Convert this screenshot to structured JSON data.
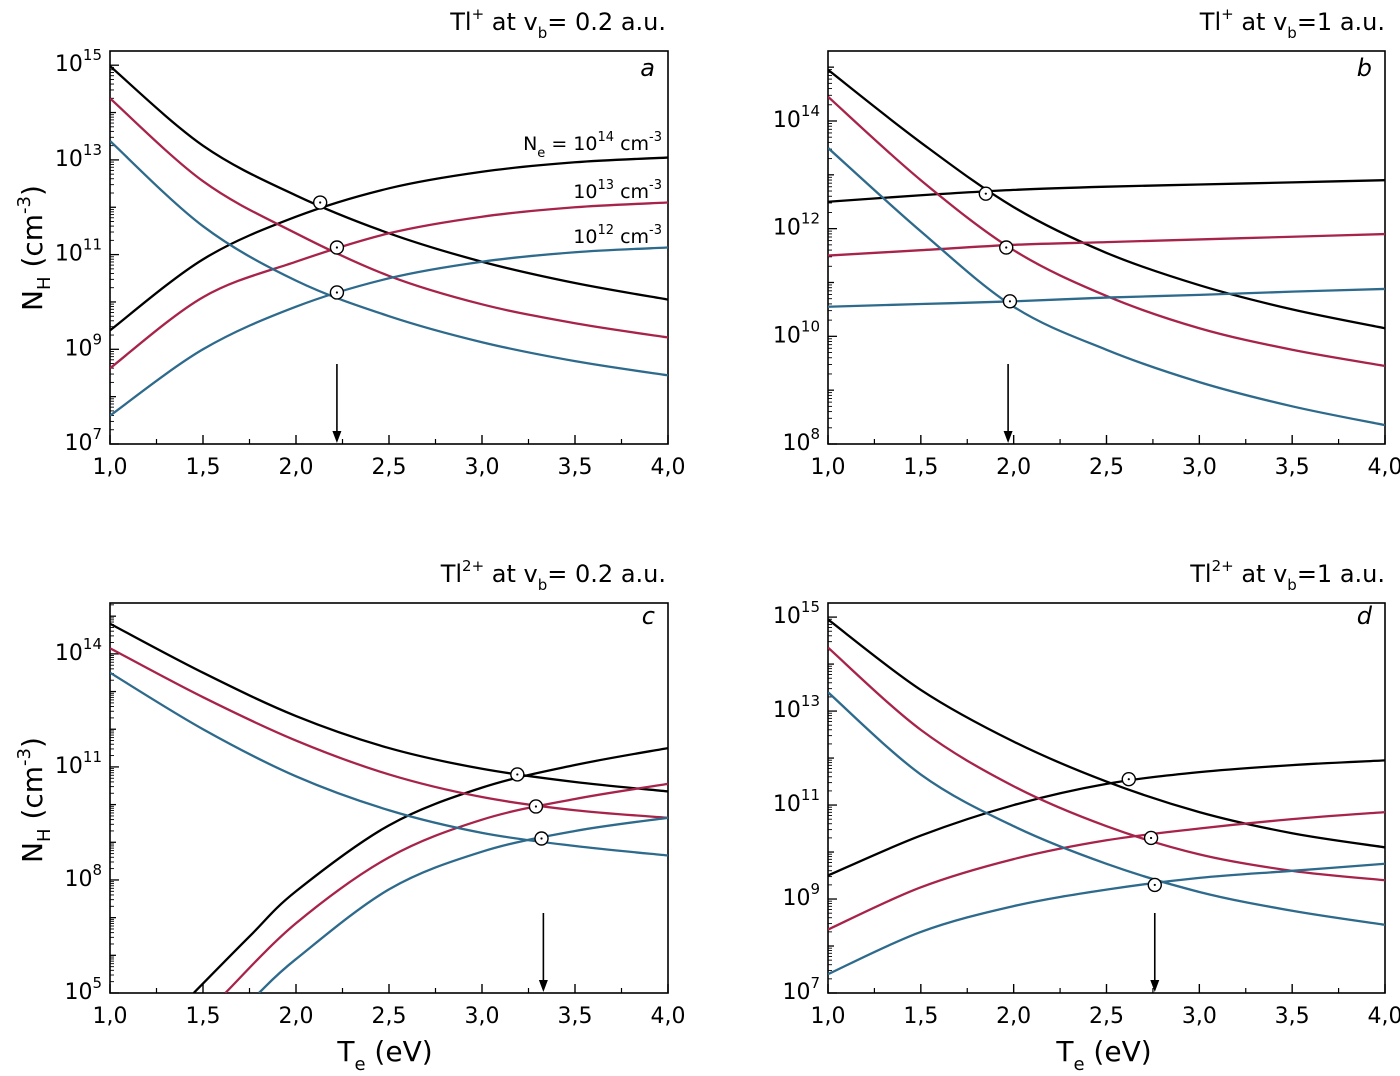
{
  "figure": {
    "colors": {
      "black": "#000000",
      "red": "#a8234a",
      "blue": "#2d6a8c"
    },
    "y_label": {
      "main": "N",
      "sub": "H",
      "rest": " (cm",
      "sup": "-3",
      "close": ")"
    },
    "x_label": {
      "main": "T",
      "sub": "e",
      "rest": " (eV)"
    }
  },
  "chart_data": [
    {
      "type": "line",
      "panel": "a",
      "title": {
        "ion": "Tl",
        "charge": "+",
        "mid": " at v",
        "sub": "b",
        "rest": "= 0.2 a.u."
      },
      "xlim": [
        1.0,
        4.0
      ],
      "ylim_log10": [
        7,
        15.3
      ],
      "x_ticks": [
        "1,0",
        "1,5",
        "2,0",
        "2,5",
        "3,0",
        "3,5",
        "4,0"
      ],
      "y_ticks": [
        7,
        9,
        11,
        13,
        15
      ],
      "series": [
        {
          "name": "Ne = 10^14 cm^-3",
          "color": "black",
          "kind": "decreasing",
          "log10_y": [
            [
              1.0,
              14.98
            ],
            [
              1.5,
              13.3
            ],
            [
              2.0,
              12.25
            ],
            [
              2.5,
              11.45
            ],
            [
              3.0,
              10.85
            ],
            [
              3.5,
              10.4
            ],
            [
              4.0,
              10.05
            ]
          ]
        },
        {
          "name": "Ne = 10^14 cm^-3",
          "color": "black",
          "kind": "increasing",
          "log10_y": [
            [
              1.0,
              9.4
            ],
            [
              1.5,
              10.9
            ],
            [
              2.0,
              11.8
            ],
            [
              2.5,
              12.4
            ],
            [
              3.0,
              12.75
            ],
            [
              3.5,
              12.95
            ],
            [
              4.0,
              13.05
            ]
          ]
        },
        {
          "name": "Ne = 10^13 cm^-3",
          "color": "red",
          "kind": "decreasing",
          "log10_y": [
            [
              1.0,
              14.3
            ],
            [
              1.5,
              12.55
            ],
            [
              2.0,
              11.45
            ],
            [
              2.5,
              10.55
            ],
            [
              3.0,
              9.95
            ],
            [
              3.5,
              9.55
            ],
            [
              4.0,
              9.25
            ]
          ]
        },
        {
          "name": "Ne = 10^13 cm^-3",
          "color": "red",
          "kind": "increasing",
          "log10_y": [
            [
              1.0,
              8.6
            ],
            [
              1.5,
              10.1
            ],
            [
              2.0,
              10.85
            ],
            [
              2.5,
              11.45
            ],
            [
              3.0,
              11.8
            ],
            [
              3.5,
              12.0
            ],
            [
              4.0,
              12.1
            ]
          ]
        },
        {
          "name": "Ne = 10^12 cm^-3",
          "color": "blue",
          "kind": "decreasing",
          "log10_y": [
            [
              1.0,
              13.4
            ],
            [
              1.5,
              11.6
            ],
            [
              2.0,
              10.45
            ],
            [
              2.5,
              9.7
            ],
            [
              3.0,
              9.15
            ],
            [
              3.5,
              8.75
            ],
            [
              4.0,
              8.45
            ]
          ]
        },
        {
          "name": "Ne = 10^12 cm^-3",
          "color": "blue",
          "kind": "increasing",
          "log10_y": [
            [
              1.0,
              7.6
            ],
            [
              1.5,
              9.0
            ],
            [
              2.0,
              9.9
            ],
            [
              2.5,
              10.5
            ],
            [
              3.0,
              10.85
            ],
            [
              3.5,
              11.05
            ],
            [
              4.0,
              11.15
            ]
          ]
        }
      ],
      "markers": [
        [
          2.13,
          12.1
        ],
        [
          2.22,
          11.15
        ],
        [
          2.22,
          10.2
        ]
      ],
      "arrow_x": 2.22,
      "curve_labels": [
        {
          "parts": {
            "pre": "N",
            "sub": "e",
            "mid": " = 10",
            "sup": "14",
            "post": " cm",
            "sup2": "-3"
          }
        },
        {
          "parts": {
            "pre": "",
            "sub": "",
            "mid": "10",
            "sup": "13",
            "post": " cm",
            "sup2": "-3"
          }
        },
        {
          "parts": {
            "pre": "",
            "sub": "",
            "mid": "10",
            "sup": "12",
            "post": " cm",
            "sup2": "-3"
          }
        }
      ]
    },
    {
      "type": "line",
      "panel": "b",
      "title": {
        "ion": "Tl",
        "charge": "+",
        "mid": " at v",
        "sub": "b",
        "rest": "=1 a.u."
      },
      "xlim": [
        1.0,
        4.0
      ],
      "ylim_log10": [
        8,
        15.3
      ],
      "x_ticks": [
        "1,0",
        "1,5",
        "2,0",
        "2,5",
        "3,0",
        "3,5",
        "4,0"
      ],
      "y_ticks": [
        8,
        10,
        12,
        14
      ],
      "series": [
        {
          "name": "Ne = 10^14 cm^-3",
          "color": "black",
          "kind": "decreasing",
          "log10_y": [
            [
              1.0,
              14.95
            ],
            [
              1.5,
              13.6
            ],
            [
              2.0,
              12.4
            ],
            [
              2.5,
              11.55
            ],
            [
              3.0,
              10.95
            ],
            [
              3.5,
              10.5
            ],
            [
              4.0,
              10.15
            ]
          ]
        },
        {
          "name": "Ne = 10^14 cm^-3",
          "color": "black",
          "kind": "increasing",
          "log10_y": [
            [
              1.0,
              12.5
            ],
            [
              1.5,
              12.62
            ],
            [
              2.0,
              12.72
            ],
            [
              2.5,
              12.78
            ],
            [
              3.0,
              12.82
            ],
            [
              3.5,
              12.86
            ],
            [
              4.0,
              12.9
            ]
          ]
        },
        {
          "name": "Ne = 10^13 cm^-3",
          "color": "red",
          "kind": "decreasing",
          "log10_y": [
            [
              1.0,
              14.45
            ],
            [
              1.5,
              12.9
            ],
            [
              2.0,
              11.6
            ],
            [
              2.5,
              10.75
            ],
            [
              3.0,
              10.15
            ],
            [
              3.5,
              9.75
            ],
            [
              4.0,
              9.45
            ]
          ]
        },
        {
          "name": "Ne = 10^13 cm^-3",
          "color": "red",
          "kind": "increasing",
          "log10_y": [
            [
              1.0,
              11.5
            ],
            [
              1.5,
              11.6
            ],
            [
              2.0,
              11.7
            ],
            [
              2.5,
              11.75
            ],
            [
              3.0,
              11.8
            ],
            [
              3.5,
              11.85
            ],
            [
              4.0,
              11.9
            ]
          ]
        },
        {
          "name": "Ne = 10^12 cm^-3",
          "color": "blue",
          "kind": "decreasing",
          "log10_y": [
            [
              1.0,
              13.5
            ],
            [
              1.5,
              11.95
            ],
            [
              2.0,
              10.55
            ],
            [
              2.5,
              9.75
            ],
            [
              3.0,
              9.15
            ],
            [
              3.5,
              8.7
            ],
            [
              4.0,
              8.35
            ]
          ]
        },
        {
          "name": "Ne = 10^12 cm^-3",
          "color": "blue",
          "kind": "increasing",
          "log10_y": [
            [
              1.0,
              10.55
            ],
            [
              1.5,
              10.6
            ],
            [
              2.0,
              10.65
            ],
            [
              2.5,
              10.72
            ],
            [
              3.0,
              10.77
            ],
            [
              3.5,
              10.83
            ],
            [
              4.0,
              10.88
            ]
          ]
        }
      ],
      "markers": [
        [
          1.85,
          12.65
        ],
        [
          1.96,
          11.65
        ],
        [
          1.98,
          10.65
        ]
      ],
      "arrow_x": 1.97,
      "curve_labels": []
    },
    {
      "type": "line",
      "panel": "c",
      "title": {
        "ion": "Tl",
        "charge": "2+",
        "mid": " at v",
        "sub": "b",
        "rest": "= 0.2 a.u."
      },
      "xlim": [
        1.0,
        4.0
      ],
      "ylim_log10": [
        5,
        15.35
      ],
      "x_ticks": [
        "1,0",
        "1,5",
        "2,0",
        "2,5",
        "3,0",
        "3,5",
        "4,0"
      ],
      "y_ticks": [
        5,
        8,
        11,
        14
      ],
      "series": [
        {
          "name": "Ne = 10^14 cm^-3",
          "color": "black",
          "kind": "decreasing",
          "log10_y": [
            [
              1.0,
              14.8
            ],
            [
              1.5,
              13.5
            ],
            [
              2.0,
              12.35
            ],
            [
              2.5,
              11.5
            ],
            [
              3.0,
              10.95
            ],
            [
              3.5,
              10.6
            ],
            [
              4.0,
              10.35
            ]
          ]
        },
        {
          "name": "Ne = 10^14 cm^-3",
          "color": "black",
          "kind": "increasing",
          "log10_y": [
            [
              1.45,
              5.0
            ],
            [
              1.75,
              6.5
            ],
            [
              2.0,
              7.7
            ],
            [
              2.5,
              9.45
            ],
            [
              3.0,
              10.45
            ],
            [
              3.5,
              11.05
            ],
            [
              4.0,
              11.5
            ]
          ]
        },
        {
          "name": "Ne = 10^13 cm^-3",
          "color": "red",
          "kind": "decreasing",
          "log10_y": [
            [
              1.0,
              14.15
            ],
            [
              1.5,
              12.85
            ],
            [
              2.0,
              11.7
            ],
            [
              2.5,
              10.8
            ],
            [
              3.0,
              10.2
            ],
            [
              3.5,
              9.85
            ],
            [
              4.0,
              9.65
            ]
          ]
        },
        {
          "name": "Ne = 10^13 cm^-3",
          "color": "red",
          "kind": "increasing",
          "log10_y": [
            [
              1.62,
              5.0
            ],
            [
              2.0,
              6.85
            ],
            [
              2.5,
              8.6
            ],
            [
              3.0,
              9.6
            ],
            [
              3.5,
              10.15
            ],
            [
              4.0,
              10.55
            ]
          ]
        },
        {
          "name": "Ne = 10^12 cm^-3",
          "color": "blue",
          "kind": "decreasing",
          "log10_y": [
            [
              1.0,
              13.5
            ],
            [
              1.5,
              12.0
            ],
            [
              2.0,
              10.75
            ],
            [
              2.5,
              9.85
            ],
            [
              3.0,
              9.25
            ],
            [
              3.5,
              8.9
            ],
            [
              4.0,
              8.65
            ]
          ]
        },
        {
          "name": "Ne = 10^12 cm^-3",
          "color": "blue",
          "kind": "increasing",
          "log10_y": [
            [
              1.8,
              5.0
            ],
            [
              2.0,
              5.9
            ],
            [
              2.5,
              7.75
            ],
            [
              3.0,
              8.75
            ],
            [
              3.5,
              9.3
            ],
            [
              4.0,
              9.65
            ]
          ]
        }
      ],
      "markers": [
        [
          3.19,
          10.8
        ],
        [
          3.29,
          9.95
        ],
        [
          3.32,
          9.1
        ]
      ],
      "arrow_x": 3.33,
      "curve_labels": []
    },
    {
      "type": "line",
      "panel": "d",
      "title": {
        "ion": "Tl",
        "charge": "2+",
        "mid": " at v",
        "sub": "b",
        "rest": "=1 a.u."
      },
      "xlim": [
        1.0,
        4.0
      ],
      "ylim_log10": [
        7,
        15.3
      ],
      "x_ticks": [
        "1,0",
        "1,5",
        "2,0",
        "2,5",
        "3,0",
        "3,5",
        "4,0"
      ],
      "y_ticks": [
        7,
        9,
        11,
        13,
        15
      ],
      "series": [
        {
          "name": "Ne = 10^14 cm^-3",
          "color": "black",
          "kind": "decreasing",
          "log10_y": [
            [
              1.0,
              14.95
            ],
            [
              1.5,
              13.45
            ],
            [
              2.0,
              12.35
            ],
            [
              2.5,
              11.5
            ],
            [
              3.0,
              10.85
            ],
            [
              3.5,
              10.4
            ],
            [
              4.0,
              10.1
            ]
          ]
        },
        {
          "name": "Ne = 10^14 cm^-3",
          "color": "black",
          "kind": "increasing",
          "log10_y": [
            [
              1.0,
              9.5
            ],
            [
              1.5,
              10.35
            ],
            [
              2.0,
              11.0
            ],
            [
              2.5,
              11.45
            ],
            [
              3.0,
              11.7
            ],
            [
              3.5,
              11.85
            ],
            [
              4.0,
              11.95
            ]
          ]
        },
        {
          "name": "Ne = 10^13 cm^-3",
          "color": "red",
          "kind": "decreasing",
          "log10_y": [
            [
              1.0,
              14.35
            ],
            [
              1.5,
              12.6
            ],
            [
              2.0,
              11.4
            ],
            [
              2.5,
              10.55
            ],
            [
              3.0,
              9.95
            ],
            [
              3.5,
              9.6
            ],
            [
              4.0,
              9.4
            ]
          ]
        },
        {
          "name": "Ne = 10^13 cm^-3",
          "color": "red",
          "kind": "increasing",
          "log10_y": [
            [
              1.0,
              8.35
            ],
            [
              1.5,
              9.25
            ],
            [
              2.0,
              9.85
            ],
            [
              2.5,
              10.25
            ],
            [
              3.0,
              10.5
            ],
            [
              3.5,
              10.7
            ],
            [
              4.0,
              10.85
            ]
          ]
        },
        {
          "name": "Ne = 10^12 cm^-3",
          "color": "blue",
          "kind": "decreasing",
          "log10_y": [
            [
              1.0,
              13.4
            ],
            [
              1.5,
              11.65
            ],
            [
              2.0,
              10.55
            ],
            [
              2.5,
              9.75
            ],
            [
              3.0,
              9.15
            ],
            [
              3.5,
              8.75
            ],
            [
              4.0,
              8.45
            ]
          ]
        },
        {
          "name": "Ne = 10^12 cm^-3",
          "color": "blue",
          "kind": "increasing",
          "log10_y": [
            [
              1.0,
              7.4
            ],
            [
              1.5,
              8.3
            ],
            [
              2.0,
              8.85
            ],
            [
              2.5,
              9.2
            ],
            [
              3.0,
              9.45
            ],
            [
              3.5,
              9.6
            ],
            [
              4.0,
              9.75
            ]
          ]
        }
      ],
      "markers": [
        [
          2.62,
          11.55
        ],
        [
          2.74,
          10.3
        ],
        [
          2.76,
          9.3
        ]
      ],
      "arrow_x": 2.76,
      "curve_labels": []
    }
  ]
}
